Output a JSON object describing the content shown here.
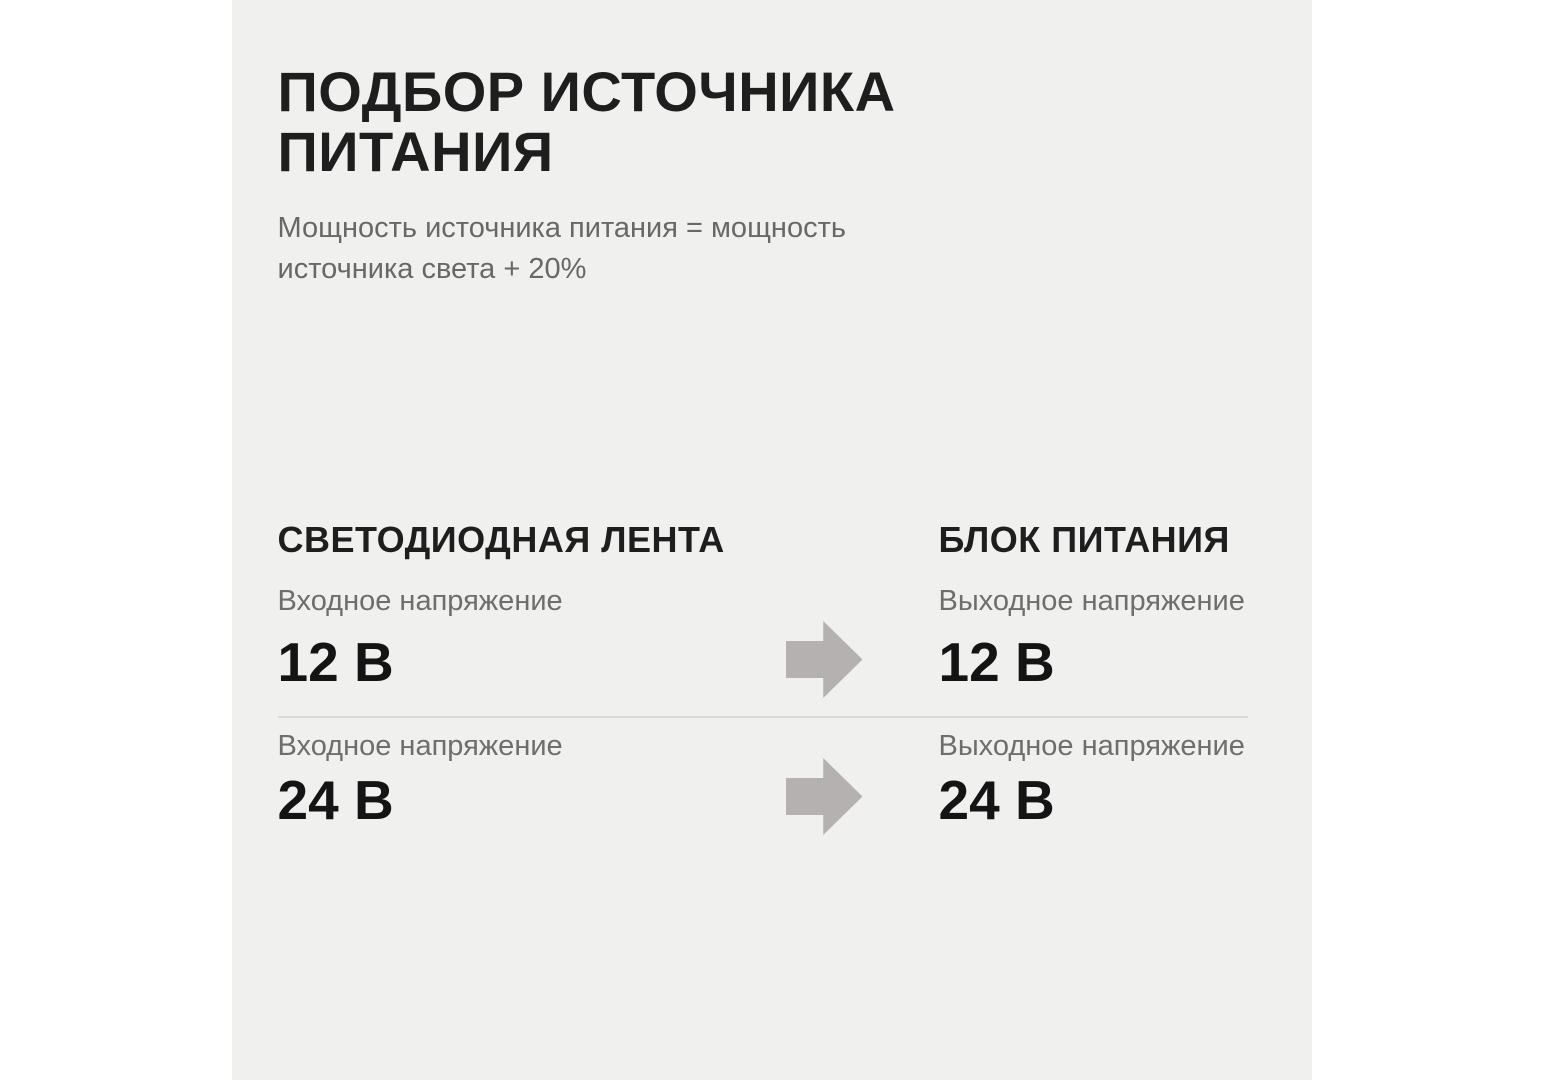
{
  "panel": {
    "title": "ПОДБОР ИСТОЧНИКА ПИТАНИЯ",
    "subtitle": "Мощность источника питания = мощность источника света + 20%"
  },
  "comparison": {
    "left_header": "СВЕТОДИОДНАЯ ЛЕНТА",
    "right_header": "БЛОК ПИТАНИЯ",
    "rows": [
      {
        "left_label": "Входное напряжение",
        "left_value": "12 В",
        "right_label": "Выходное напряжение",
        "right_value": "12 В"
      },
      {
        "left_label": "Входное напряжение",
        "left_value": "24 В",
        "right_label": "Выходное напряжение",
        "right_value": "24 В"
      }
    ]
  },
  "colors": {
    "page_bg": "#ffffff",
    "panel_bg": "#f0f0ef",
    "text_dark": "#1e1e1e",
    "text_gray": "#686868",
    "label_gray": "#6e6e6e",
    "divider": "#d8d8d7",
    "arrow": "#b4b1b0"
  }
}
